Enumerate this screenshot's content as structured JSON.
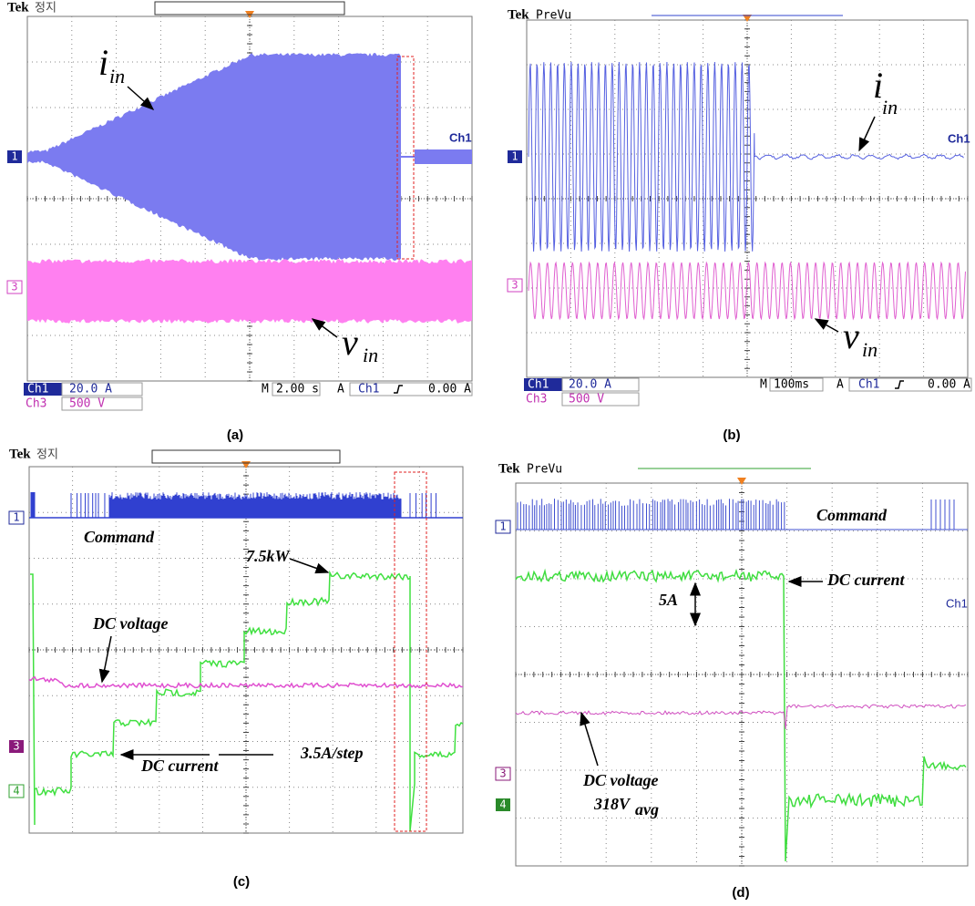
{
  "panels": [
    {
      "caption": "(a)",
      "brand": "Tek",
      "status": "정지",
      "channel_markers": [
        "1",
        "3"
      ],
      "right_label": "Ch1",
      "annotations": [
        {
          "symbol": "i",
          "subscript": "in"
        },
        {
          "symbol": "v",
          "subscript": "in"
        }
      ],
      "readout": {
        "ch1_name": "Ch1",
        "ch1_scale": "20.0 A",
        "ch3_name": "Ch3",
        "ch3_scale": "500 V",
        "time_prefix": "M",
        "time_scale": "2.00 s",
        "trigger_prefix": "A",
        "trigger_source": "Ch1",
        "trigger_level": "0.00 A"
      }
    },
    {
      "caption": "(b)",
      "brand": "Tek",
      "status": "PreVu",
      "channel_markers": [
        "1",
        "3"
      ],
      "right_label": "Ch1",
      "annotations": [
        {
          "symbol": "i",
          "subscript": "in"
        },
        {
          "symbol": "v",
          "subscript": "in"
        }
      ],
      "readout": {
        "ch1_name": "Ch1",
        "ch1_scale": "20.0 A",
        "ch3_name": "Ch3",
        "ch3_scale": "500 V",
        "time_prefix": "M",
        "time_scale": "100ms",
        "trigger_prefix": "A",
        "trigger_source": "Ch1",
        "trigger_level": "0.00 A"
      }
    },
    {
      "caption": "(c)",
      "brand": "Tek",
      "status": "정지",
      "channel_markers": [
        "1",
        "3",
        "4"
      ],
      "annotations": [
        "Command",
        "7.5kW",
        "DC voltage",
        "DC current",
        "3.5A/step"
      ]
    },
    {
      "caption": "(d)",
      "brand": "Tek",
      "status": "PreVu",
      "channel_markers": [
        "1",
        "3",
        "4"
      ],
      "right_label": "Ch1",
      "annotations": [
        "Command",
        "DC current",
        "5A",
        {
          "text": "DC voltage",
          "value": "318V",
          "subscript": "avg"
        }
      ]
    }
  ]
}
